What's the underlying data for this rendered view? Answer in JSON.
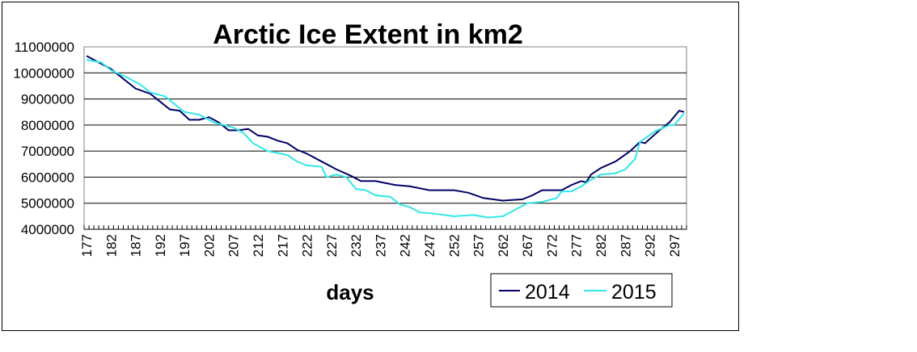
{
  "chart_data": {
    "type": "line",
    "title": "Arctic Ice Extent in km2",
    "xlabel": "days",
    "ylabel": "",
    "xlim": [
      177,
      299
    ],
    "ylim": [
      4000000,
      11000000
    ],
    "yticks": [
      4000000,
      5000000,
      6000000,
      7000000,
      8000000,
      9000000,
      10000000,
      11000000
    ],
    "xticks": [
      177,
      182,
      187,
      192,
      197,
      202,
      207,
      212,
      217,
      222,
      227,
      232,
      237,
      242,
      247,
      252,
      257,
      262,
      267,
      272,
      277,
      282,
      287,
      292,
      297
    ],
    "grid": true,
    "legend": "bottom-right",
    "series": [
      {
        "name": "2014",
        "color": "#000066",
        "points": [
          [
            177,
            10650000
          ],
          [
            182,
            10150000
          ],
          [
            185,
            9700000
          ],
          [
            187,
            9400000
          ],
          [
            190,
            9200000
          ],
          [
            192,
            8900000
          ],
          [
            194,
            8600000
          ],
          [
            196,
            8550000
          ],
          [
            198,
            8200000
          ],
          [
            200,
            8200000
          ],
          [
            202,
            8300000
          ],
          [
            204,
            8100000
          ],
          [
            206,
            7800000
          ],
          [
            208,
            7800000
          ],
          [
            210,
            7850000
          ],
          [
            212,
            7600000
          ],
          [
            214,
            7550000
          ],
          [
            216,
            7400000
          ],
          [
            218,
            7300000
          ],
          [
            220,
            7050000
          ],
          [
            222,
            6900000
          ],
          [
            225,
            6600000
          ],
          [
            228,
            6300000
          ],
          [
            231,
            6050000
          ],
          [
            233,
            5850000
          ],
          [
            236,
            5850000
          ],
          [
            240,
            5700000
          ],
          [
            243,
            5650000
          ],
          [
            247,
            5500000
          ],
          [
            252,
            5500000
          ],
          [
            255,
            5400000
          ],
          [
            258,
            5200000
          ],
          [
            262,
            5100000
          ],
          [
            266,
            5150000
          ],
          [
            268,
            5300000
          ],
          [
            270,
            5500000
          ],
          [
            274,
            5500000
          ],
          [
            276,
            5700000
          ],
          [
            278,
            5850000
          ],
          [
            279,
            5800000
          ],
          [
            280,
            6100000
          ],
          [
            282,
            6350000
          ],
          [
            285,
            6600000
          ],
          [
            288,
            7000000
          ],
          [
            290,
            7350000
          ],
          [
            291,
            7300000
          ],
          [
            294,
            7800000
          ],
          [
            296,
            8100000
          ],
          [
            298,
            8550000
          ],
          [
            299,
            8500000
          ]
        ]
      },
      {
        "name": "2015",
        "color": "#33E6E6",
        "points": [
          [
            177,
            10500000
          ],
          [
            180,
            10400000
          ],
          [
            182,
            10100000
          ],
          [
            185,
            9850000
          ],
          [
            188,
            9550000
          ],
          [
            190,
            9250000
          ],
          [
            193,
            9100000
          ],
          [
            195,
            8800000
          ],
          [
            197,
            8500000
          ],
          [
            200,
            8400000
          ],
          [
            203,
            8100000
          ],
          [
            207,
            7900000
          ],
          [
            209,
            7700000
          ],
          [
            211,
            7300000
          ],
          [
            214,
            7000000
          ],
          [
            218,
            6850000
          ],
          [
            220,
            6600000
          ],
          [
            222,
            6450000
          ],
          [
            225,
            6400000
          ],
          [
            226,
            6000000
          ],
          [
            228,
            6100000
          ],
          [
            230,
            6000000
          ],
          [
            232,
            5550000
          ],
          [
            234,
            5500000
          ],
          [
            236,
            5300000
          ],
          [
            239,
            5250000
          ],
          [
            241,
            4950000
          ],
          [
            243,
            4850000
          ],
          [
            245,
            4650000
          ],
          [
            248,
            4600000
          ],
          [
            252,
            4500000
          ],
          [
            256,
            4550000
          ],
          [
            259,
            4450000
          ],
          [
            262,
            4500000
          ],
          [
            265,
            4800000
          ],
          [
            267,
            5000000
          ],
          [
            270,
            5050000
          ],
          [
            273,
            5200000
          ],
          [
            274,
            5450000
          ],
          [
            276,
            5450000
          ],
          [
            278,
            5650000
          ],
          [
            280,
            5900000
          ],
          [
            282,
            6100000
          ],
          [
            285,
            6150000
          ],
          [
            287,
            6300000
          ],
          [
            289,
            6700000
          ],
          [
            290,
            7350000
          ],
          [
            293,
            7750000
          ],
          [
            296,
            8000000
          ],
          [
            297,
            8000000
          ],
          [
            299,
            8450000
          ]
        ]
      }
    ]
  }
}
